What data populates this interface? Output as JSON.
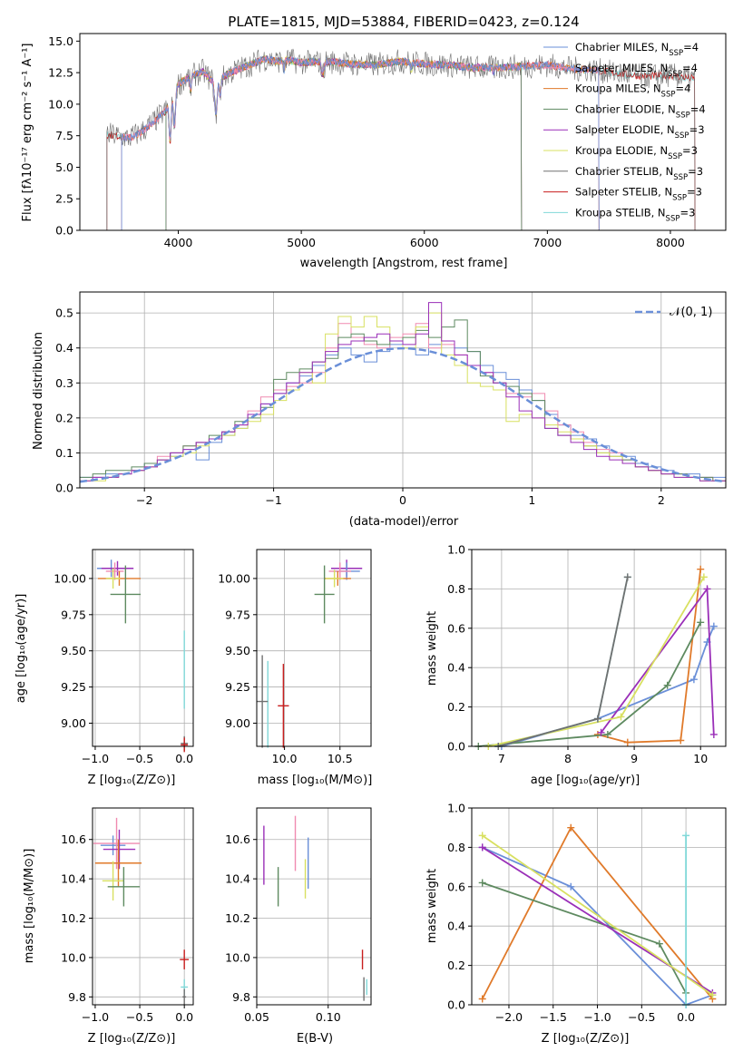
{
  "title": "PLATE=1815, MJD=53884, FIBERID=0423, z=0.124",
  "colors": {
    "chabrier_miles": "#6a8fd8",
    "salpeter_miles": "#f08ab0",
    "kroupa_miles": "#e07a2a",
    "chabrier_elodie": "#5e8a60",
    "salpeter_elodie": "#9a2fb8",
    "kroupa_elodie": "#d8e060",
    "chabrier_stelib": "#707070",
    "salpeter_stelib": "#c81e1e",
    "kroupa_stelib": "#80d8d8"
  },
  "spectrum": {
    "ylabel": "Flux [fλ10⁻¹⁷ erg cm⁻² s⁻¹ A⁻¹]",
    "xlabel": "wavelength [Angstrom, rest frame]",
    "xticks": [
      "4000",
      "5000",
      "6000",
      "7000",
      "8000"
    ],
    "yticks": [
      "0.0",
      "2.5",
      "5.0",
      "7.5",
      "10.0",
      "12.5",
      "15.0"
    ],
    "legend": [
      "Chabrier MILES, N_SSP=4",
      "Salpeter MILES, N_SSP=4",
      "Kroupa MILES, N_SSP=4",
      "Chabrier ELODIE, N_SSP=4",
      "Salpeter ELODIE, N_SSP=3",
      "Kroupa ELODIE, N_SSP=3",
      "Chabrier STELIB, N_SSP=3",
      "Salpeter STELIB, N_SSP=3",
      "Kroupa STELIB, N_SSP=3"
    ]
  },
  "residuals": {
    "ylabel": "Normed distribution",
    "xlabel": "(data-model)/error",
    "xticks": [
      "−2",
      "−1",
      "0",
      "1",
      "2"
    ],
    "yticks": [
      "0.0",
      "0.1",
      "0.2",
      "0.3",
      "0.4",
      "0.5"
    ],
    "legend": "𝒩(0, 1)"
  },
  "age_z": {
    "ylabel": "age  [log₁₀(age/yr)]",
    "xlabel": "Z [log₁₀(Z/Z⊙)]",
    "xticks": [
      "−1.0",
      "−0.5",
      "0.0"
    ],
    "yticks": [
      "9.00",
      "9.25",
      "9.50",
      "9.75",
      "10.00"
    ]
  },
  "age_mass": {
    "xlabel": "mass [log₁₀(M/M⊙)]",
    "xticks": [
      "10.0",
      "10.5"
    ],
    "yticks": [
      "9.00",
      "9.25",
      "9.50",
      "9.75",
      "10.00"
    ]
  },
  "weight_age": {
    "ylabel": "mass weight",
    "xlabel": "age  [log₁₀(age/yr)]",
    "xticks": [
      "7",
      "8",
      "9",
      "10"
    ],
    "yticks": [
      "0.0",
      "0.2",
      "0.4",
      "0.6",
      "0.8",
      "1.0"
    ]
  },
  "mass_z": {
    "ylabel": "mass [log₁₀(M/M⊙)]",
    "xlabel": "Z [log₁₀(Z/Z⊙)]",
    "xticks": [
      "−1.0",
      "−0.5",
      "0.0"
    ],
    "yticks": [
      "9.8",
      "10.0",
      "10.2",
      "10.4",
      "10.6"
    ]
  },
  "mass_ebv": {
    "xlabel": "E(B-V)",
    "xticks": [
      "0.05",
      "0.10"
    ],
    "yticks": [
      "9.8",
      "10.0",
      "10.2",
      "10.4",
      "10.6"
    ]
  },
  "weight_z": {
    "ylabel": "mass weight",
    "xlabel": "Z [log₁₀(Z/Z⊙)]",
    "xticks": [
      "−2.0",
      "−1.5",
      "−1.0",
      "−0.5",
      "0.0"
    ],
    "yticks": [
      "0.0",
      "0.2",
      "0.4",
      "0.6",
      "0.8",
      "1.0"
    ]
  },
  "chart_data": [
    {
      "type": "line",
      "panel": "spectrum",
      "xlim": [
        3200,
        8450
      ],
      "ylim": [
        0,
        15.6
      ],
      "note_values": "approximate continuum of observed spectrum and models",
      "x": [
        3420,
        3500,
        3600,
        3700,
        3800,
        3900,
        4000,
        4100,
        4200,
        4300,
        4400,
        4500,
        4600,
        4700,
        4800,
        4900,
        5000,
        5200,
        5400,
        5600,
        5800,
        6000,
        6200,
        6400,
        6600,
        6800,
        7000,
        7200,
        7400,
        7600,
        7800,
        8000,
        8200
      ],
      "y": [
        7.6,
        7.5,
        7.3,
        7.8,
        8.6,
        9.5,
        11.6,
        12.2,
        12.6,
        11.6,
        12.4,
        12.8,
        13.2,
        13.6,
        13.4,
        13.5,
        13.3,
        13.4,
        13.2,
        13.1,
        13.4,
        13.2,
        13.1,
        12.9,
        12.9,
        13.0,
        13.1,
        12.8,
        12.7,
        12.4,
        12.2,
        12.3,
        12.0
      ]
    },
    {
      "type": "bar",
      "panel": "residuals",
      "xlim": [
        -2.5,
        2.5
      ],
      "ylim": [
        0,
        0.56
      ],
      "bin_centers": [
        -2.45,
        -2.35,
        -2.25,
        -2.15,
        -2.05,
        -1.95,
        -1.85,
        -1.75,
        -1.65,
        -1.55,
        -1.45,
        -1.35,
        -1.25,
        -1.15,
        -1.05,
        -0.95,
        -0.85,
        -0.75,
        -0.65,
        -0.55,
        -0.45,
        -0.35,
        -0.25,
        -0.15,
        -0.05,
        0.05,
        0.15,
        0.25,
        0.35,
        0.45,
        0.55,
        0.65,
        0.75,
        0.85,
        0.95,
        1.05,
        1.15,
        1.25,
        1.35,
        1.45,
        1.55,
        1.65,
        1.75,
        1.85,
        1.95,
        2.05,
        2.15,
        2.25,
        2.35,
        2.45
      ],
      "series": [
        {
          "name": "Chabrier MILES",
          "color": "#6a8fd8",
          "values": [
            0.03,
            0.03,
            0.04,
            0.04,
            0.05,
            0.07,
            0.08,
            0.09,
            0.11,
            0.08,
            0.13,
            0.15,
            0.17,
            0.21,
            0.24,
            0.27,
            0.3,
            0.32,
            0.35,
            0.38,
            0.4,
            0.38,
            0.36,
            0.39,
            0.41,
            0.4,
            0.38,
            0.41,
            0.42,
            0.4,
            0.39,
            0.35,
            0.33,
            0.31,
            0.28,
            0.25,
            0.21,
            0.18,
            0.15,
            0.14,
            0.12,
            0.1,
            0.09,
            0.07,
            0.06,
            0.05,
            0.04,
            0.04,
            0.03,
            0.03
          ]
        },
        {
          "name": "Salpeter MILES",
          "color": "#f08ab0",
          "values": [
            0.02,
            0.03,
            0.03,
            0.04,
            0.05,
            0.06,
            0.09,
            0.1,
            0.12,
            0.13,
            0.14,
            0.16,
            0.18,
            0.22,
            0.26,
            0.28,
            0.29,
            0.3,
            0.33,
            0.4,
            0.47,
            0.43,
            0.41,
            0.4,
            0.43,
            0.44,
            0.47,
            0.4,
            0.41,
            0.38,
            0.35,
            0.33,
            0.3,
            0.27,
            0.26,
            0.27,
            0.22,
            0.18,
            0.16,
            0.13,
            0.11,
            0.1,
            0.08,
            0.06,
            0.05,
            0.04,
            0.04,
            0.03,
            0.03,
            0.02
          ]
        },
        {
          "name": "Chabrier ELODIE",
          "color": "#5e8a60",
          "values": [
            0.03,
            0.04,
            0.05,
            0.05,
            0.06,
            0.07,
            0.08,
            0.1,
            0.12,
            0.13,
            0.15,
            0.16,
            0.19,
            0.2,
            0.23,
            0.31,
            0.33,
            0.34,
            0.36,
            0.37,
            0.43,
            0.44,
            0.42,
            0.41,
            0.42,
            0.43,
            0.45,
            0.43,
            0.46,
            0.48,
            0.39,
            0.32,
            0.3,
            0.29,
            0.27,
            0.25,
            0.17,
            0.15,
            0.14,
            0.12,
            0.1,
            0.09,
            0.08,
            0.06,
            0.05,
            0.04,
            0.04,
            0.03,
            0.03,
            0.02
          ]
        },
        {
          "name": "Kroupa ELODIE",
          "color": "#d8e060",
          "values": [
            0.02,
            0.02,
            0.03,
            0.04,
            0.05,
            0.06,
            0.08,
            0.09,
            0.1,
            0.12,
            0.14,
            0.15,
            0.17,
            0.19,
            0.21,
            0.25,
            0.28,
            0.33,
            0.3,
            0.44,
            0.49,
            0.46,
            0.49,
            0.46,
            0.42,
            0.4,
            0.46,
            0.5,
            0.38,
            0.35,
            0.3,
            0.29,
            0.28,
            0.19,
            0.21,
            0.2,
            0.18,
            0.16,
            0.14,
            0.12,
            0.1,
            0.09,
            0.07,
            0.06,
            0.05,
            0.04,
            0.03,
            0.03,
            0.02,
            0.02
          ]
        },
        {
          "name": "Salpeter ELODIE",
          "color": "#9a2fb8",
          "values": [
            0.02,
            0.03,
            0.03,
            0.04,
            0.05,
            0.06,
            0.08,
            0.1,
            0.11,
            0.13,
            0.14,
            0.16,
            0.18,
            0.21,
            0.24,
            0.27,
            0.3,
            0.33,
            0.36,
            0.39,
            0.41,
            0.42,
            0.43,
            0.44,
            0.42,
            0.41,
            0.44,
            0.53,
            0.42,
            0.38,
            0.35,
            0.33,
            0.3,
            0.26,
            0.22,
            0.2,
            0.17,
            0.15,
            0.13,
            0.11,
            0.09,
            0.08,
            0.07,
            0.06,
            0.05,
            0.04,
            0.03,
            0.03,
            0.02,
            0.02
          ]
        }
      ],
      "reference": {
        "name": "𝒩(0, 1)",
        "type": "normal",
        "mean": 0,
        "sigma": 1
      }
    },
    {
      "type": "scatter",
      "panel": "age_vs_Z",
      "xlim": [
        -1.03,
        0.1
      ],
      "ylim": [
        8.84,
        10.2
      ],
      "points": [
        {
          "x": -0.82,
          "y": 10.07,
          "xerr": 0.16,
          "yerr": 0.06,
          "color": "#6a8fd8"
        },
        {
          "x": -0.75,
          "y": 10.07,
          "xerr": 0.18,
          "yerr": 0.05,
          "color": "#9a2fb8"
        },
        {
          "x": -0.78,
          "y": 10.05,
          "xerr": 0.1,
          "yerr": 0.06,
          "color": "#f08ab0"
        },
        {
          "x": -0.73,
          "y": 10.0,
          "xerr": 0.24,
          "yerr": 0.05,
          "color": "#e07a2a"
        },
        {
          "x": -0.8,
          "y": 10.0,
          "xerr": 0.08,
          "yerr": 0.07,
          "color": "#d8e060"
        },
        {
          "x": -0.66,
          "y": 9.89,
          "xerr": 0.17,
          "yerr": 0.2,
          "color": "#5e8a60"
        },
        {
          "x": 0.0,
          "y": 9.37,
          "xerr": 0.0,
          "yerr": 0.27,
          "color": "#80d8d8"
        },
        {
          "x": 0.0,
          "y": 8.86,
          "xerr": 0.04,
          "yerr": 0.05,
          "color": "#707070"
        },
        {
          "x": 0.0,
          "y": 8.85,
          "xerr": 0.04,
          "yerr": 0.05,
          "color": "#c81e1e"
        }
      ]
    },
    {
      "type": "scatter",
      "panel": "age_vs_mass",
      "xlim": [
        9.75,
        10.78
      ],
      "ylim": [
        8.84,
        10.2
      ],
      "points": [
        {
          "x": 10.56,
          "y": 10.07,
          "xerr": 0.14,
          "yerr": 0.06,
          "color": "#9a2fb8"
        },
        {
          "x": 10.56,
          "y": 10.05,
          "xerr": 0.12,
          "yerr": 0.06,
          "color": "#6a8fd8"
        },
        {
          "x": 10.5,
          "y": 10.05,
          "xerr": 0.1,
          "yerr": 0.06,
          "color": "#f08ab0"
        },
        {
          "x": 10.48,
          "y": 10.0,
          "xerr": 0.12,
          "yerr": 0.05,
          "color": "#e07a2a"
        },
        {
          "x": 10.45,
          "y": 10.0,
          "xerr": 0.08,
          "yerr": 0.06,
          "color": "#d8e060"
        },
        {
          "x": 10.36,
          "y": 9.89,
          "xerr": 0.09,
          "yerr": 0.2,
          "color": "#5e8a60"
        },
        {
          "x": 9.85,
          "y": 9.13,
          "xerr": 0.0,
          "yerr": 0.3,
          "color": "#80d8d8"
        },
        {
          "x": 9.8,
          "y": 9.15,
          "xerr": 0.05,
          "yerr": 0.32,
          "color": "#707070"
        },
        {
          "x": 9.99,
          "y": 9.12,
          "xerr": 0.05,
          "yerr": 0.29,
          "color": "#c81e1e"
        }
      ]
    },
    {
      "type": "line",
      "panel": "mass_weight_vs_age",
      "xlim": [
        6.55,
        10.38
      ],
      "ylim": [
        0,
        1.0
      ],
      "series": [
        {
          "name": "Chabrier MILES",
          "color": "#6a8fd8",
          "x": [
            7.0,
            8.45,
            9.9,
            10.1,
            10.2
          ],
          "y": [
            0.0,
            0.14,
            0.34,
            0.53,
            0.61
          ]
        },
        {
          "name": "Kroupa MILES",
          "color": "#e07a2a",
          "x": [
            8.45,
            8.9,
            9.7,
            10.0
          ],
          "y": [
            0.06,
            0.02,
            0.03,
            0.9
          ]
        },
        {
          "name": "Chabrier ELODIE",
          "color": "#5e8a60",
          "x": [
            6.65,
            8.6,
            9.5,
            10.0
          ],
          "y": [
            0.0,
            0.06,
            0.31,
            0.63
          ]
        },
        {
          "name": "Salpeter ELODIE",
          "color": "#9a2fb8",
          "x": [
            8.5,
            10.1,
            10.2
          ],
          "y": [
            0.07,
            0.8,
            0.06
          ]
        },
        {
          "name": "Kroupa ELODIE",
          "color": "#d8e060",
          "x": [
            6.8,
            8.8,
            10.05
          ],
          "y": [
            0.0,
            0.15,
            0.86
          ]
        },
        {
          "name": "Kroupa STELIB",
          "color": "#80d8d8",
          "x": [
            6.95,
            8.45,
            8.9
          ],
          "y": [
            0.0,
            0.14,
            0.86
          ]
        },
        {
          "name": "Chabrier STELIB",
          "color": "#707070",
          "x": [
            6.95,
            8.45,
            8.9
          ],
          "y": [
            0.0,
            0.14,
            0.86
          ]
        }
      ]
    },
    {
      "type": "scatter",
      "panel": "mass_vs_Z",
      "xlim": [
        -1.03,
        0.1
      ],
      "ylim": [
        9.76,
        10.76
      ],
      "points": [
        {
          "x": -0.8,
          "y": 10.57,
          "xerr": 0.14,
          "yerr": 0.05,
          "color": "#6a8fd8"
        },
        {
          "x": -0.76,
          "y": 10.58,
          "xerr": 0.26,
          "yerr": 0.13,
          "color": "#f08ab0"
        },
        {
          "x": -0.73,
          "y": 10.55,
          "xerr": 0.18,
          "yerr": 0.1,
          "color": "#9a2fb8"
        },
        {
          "x": -0.74,
          "y": 10.48,
          "xerr": 0.26,
          "yerr": 0.12,
          "color": "#e07a2a"
        },
        {
          "x": -0.8,
          "y": 10.39,
          "xerr": 0.12,
          "yerr": 0.1,
          "color": "#d8e060"
        },
        {
          "x": -0.68,
          "y": 10.36,
          "xerr": 0.18,
          "yerr": 0.1,
          "color": "#5e8a60"
        },
        {
          "x": 0.0,
          "y": 9.99,
          "xerr": 0.05,
          "yerr": 0.05,
          "color": "#c81e1e"
        },
        {
          "x": 0.0,
          "y": 9.85,
          "xerr": 0.04,
          "yerr": 0.04,
          "color": "#80d8d8"
        },
        {
          "x": 0.0,
          "y": 9.8,
          "xerr": 0.02,
          "yerr": 0.04,
          "color": "#707070"
        }
      ]
    },
    {
      "type": "scatter",
      "panel": "mass_vs_EBV",
      "xlim": [
        0.05,
        0.13
      ],
      "ylim": [
        9.76,
        10.76
      ],
      "points": [
        {
          "x": 0.055,
          "y": 10.52,
          "yerr": 0.15,
          "color": "#9a2fb8"
        },
        {
          "x": 0.065,
          "y": 10.36,
          "yerr": 0.1,
          "color": "#5e8a60"
        },
        {
          "x": 0.077,
          "y": 10.58,
          "yerr": 0.14,
          "color": "#f08ab0"
        },
        {
          "x": 0.084,
          "y": 10.4,
          "yerr": 0.1,
          "color": "#d8e060"
        },
        {
          "x": 0.086,
          "y": 10.48,
          "yerr": 0.13,
          "color": "#6a8fd8"
        },
        {
          "x": 0.124,
          "y": 9.99,
          "yerr": 0.05,
          "color": "#c81e1e"
        },
        {
          "x": 0.125,
          "y": 9.84,
          "yerr": 0.06,
          "color": "#707070"
        },
        {
          "x": 0.127,
          "y": 9.85,
          "yerr": 0.04,
          "color": "#80d8d8"
        }
      ]
    },
    {
      "type": "line",
      "panel": "mass_weight_vs_Z",
      "xlim": [
        -2.42,
        0.45
      ],
      "ylim": [
        0,
        1.0
      ],
      "series": [
        {
          "name": "Chabrier MILES",
          "color": "#6a8fd8",
          "x": [
            -2.3,
            -1.3,
            0.0,
            0.3
          ],
          "y": [
            0.8,
            0.6,
            0.0,
            0.05
          ]
        },
        {
          "name": "Kroupa MILES",
          "color": "#e07a2a",
          "x": [
            -2.3,
            -1.3,
            0.3
          ],
          "y": [
            0.03,
            0.9,
            0.03
          ]
        },
        {
          "name": "Chabrier ELODIE",
          "color": "#5e8a60",
          "x": [
            -2.3,
            -0.3,
            0.0
          ],
          "y": [
            0.62,
            0.31,
            0.06
          ]
        },
        {
          "name": "Salpeter ELODIE",
          "color": "#9a2fb8",
          "x": [
            -2.3,
            0.3
          ],
          "y": [
            0.8,
            0.06
          ]
        },
        {
          "name": "Kroupa ELODIE",
          "color": "#d8e060",
          "x": [
            -2.3,
            0.3
          ],
          "y": [
            0.86,
            0.05
          ]
        },
        {
          "name": "Kroupa STELIB",
          "color": "#80d8d8",
          "x": [
            0.0,
            0.0
          ],
          "y": [
            0.0,
            0.86
          ]
        }
      ]
    }
  ]
}
